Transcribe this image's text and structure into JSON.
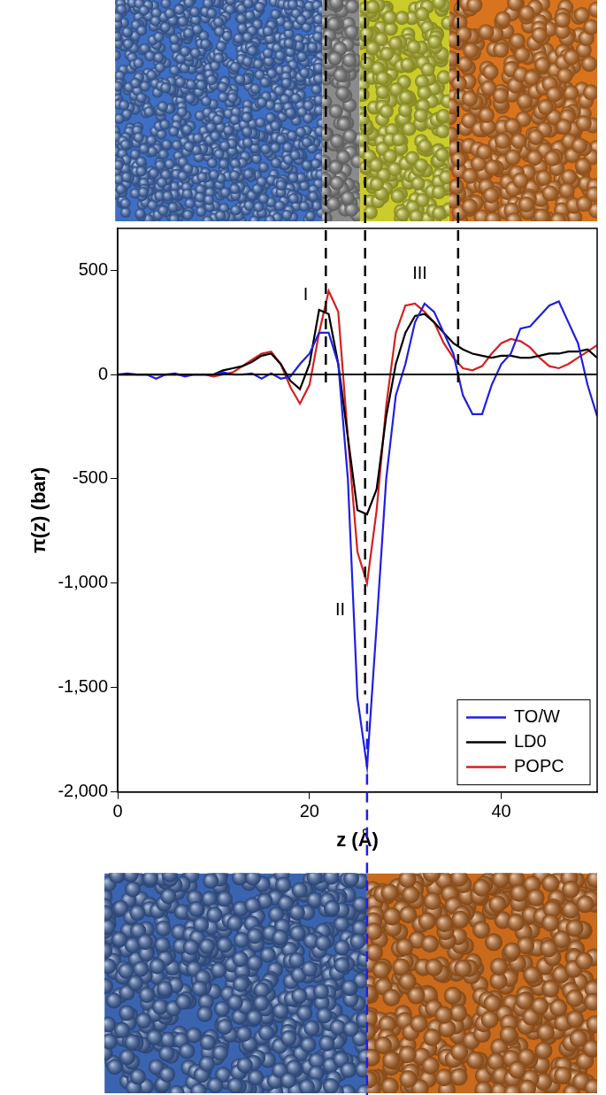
{
  "chart_data": {
    "type": "line",
    "x_label": "z (Å)",
    "y_label": "π(z) (bar)",
    "x": [
      0,
      1,
      2,
      3,
      4,
      5,
      6,
      7,
      8,
      9,
      10,
      11,
      12,
      13,
      14,
      15,
      16,
      17,
      18,
      19,
      20,
      21,
      22,
      23,
      24,
      25,
      26,
      27,
      28,
      29,
      30,
      31,
      32,
      33,
      34,
      35,
      36,
      37,
      38,
      39,
      40,
      41,
      42,
      43,
      44,
      45,
      46,
      47,
      48,
      49,
      50
    ],
    "series": [
      {
        "name": "TO/W",
        "color": "#1f1fe0",
        "values": [
          0,
          5,
          0,
          0,
          -20,
          0,
          5,
          -10,
          0,
          0,
          0,
          10,
          0,
          0,
          5,
          -20,
          5,
          -20,
          -10,
          50,
          100,
          200,
          200,
          50,
          -500,
          -1550,
          -1880,
          -1200,
          -500,
          -100,
          50,
          250,
          340,
          300,
          200,
          100,
          -100,
          -190,
          -190,
          -50,
          50,
          100,
          220,
          230,
          280,
          330,
          350,
          250,
          150,
          -50,
          -200
        ]
      },
      {
        "name": "LD0",
        "color": "#000000",
        "values": [
          0,
          0,
          0,
          0,
          0,
          0,
          0,
          0,
          0,
          0,
          0,
          20,
          30,
          40,
          60,
          90,
          100,
          50,
          -30,
          -70,
          50,
          310,
          290,
          50,
          -300,
          -650,
          -670,
          -550,
          -200,
          50,
          200,
          280,
          290,
          250,
          200,
          150,
          120,
          100,
          90,
          80,
          90,
          90,
          80,
          80,
          90,
          100,
          100,
          110,
          110,
          120,
          80
        ]
      },
      {
        "name": "POPC",
        "color": "#d42020",
        "values": [
          0,
          0,
          0,
          0,
          0,
          0,
          0,
          0,
          0,
          0,
          -10,
          0,
          10,
          40,
          70,
          100,
          110,
          50,
          -60,
          -140,
          -50,
          200,
          400,
          300,
          -300,
          -850,
          -1000,
          -650,
          -150,
          200,
          330,
          340,
          300,
          250,
          150,
          80,
          30,
          20,
          40,
          100,
          150,
          170,
          160,
          130,
          80,
          40,
          30,
          50,
          80,
          110,
          140
        ]
      }
    ],
    "xlim": [
      0,
      50
    ],
    "xticks": [
      0,
      20,
      40
    ],
    "ylim": [
      -2000,
      700
    ],
    "yticks": [
      -2000,
      -1500,
      -1000,
      -500,
      0,
      500
    ],
    "grid": false,
    "legend": "lower right",
    "hline": 0,
    "vlines": [
      {
        "x": 21.7,
        "color": "#000000"
      },
      {
        "x": 25.8,
        "color": "#000000"
      },
      {
        "x": 35.5,
        "color": "#000000"
      },
      {
        "x": 26,
        "color": "#1f1fe0"
      }
    ],
    "annotations": [
      {
        "text": "I",
        "x": 19.6,
        "y": 380
      },
      {
        "text": "II",
        "x": 23.2,
        "y": -1130
      },
      {
        "text": "III",
        "x": 31.5,
        "y": 480
      }
    ]
  }
}
